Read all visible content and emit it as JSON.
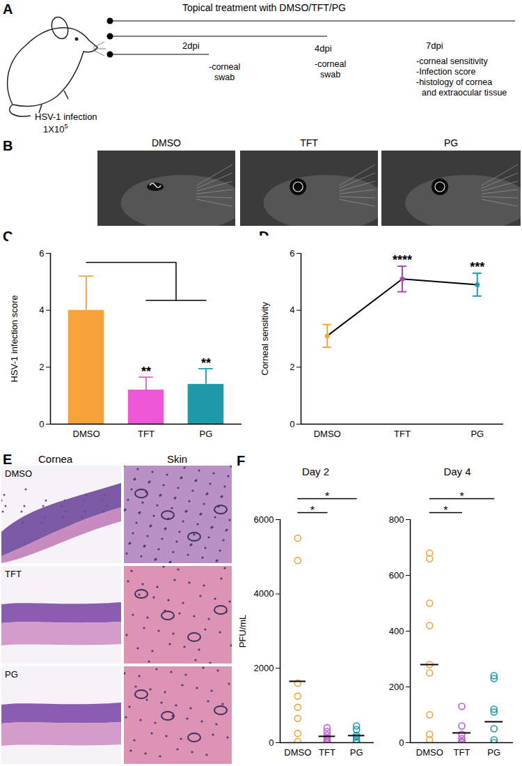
{
  "chart_data": [
    {
      "panel": "C",
      "type": "bar",
      "categories": [
        "DMSO",
        "TFT",
        "PG"
      ],
      "values": [
        4.0,
        1.2,
        1.4
      ],
      "errors": [
        1.2,
        0.45,
        0.55
      ],
      "colors": [
        "#f7a23b",
        "#ee58d8",
        "#1e9aa8"
      ],
      "ylabel": "HSV-1 infection score",
      "ylim": [
        0,
        6
      ],
      "yticks": [
        0,
        2,
        4,
        6
      ],
      "annotations": [
        {
          "category": "TFT",
          "text": "**"
        },
        {
          "category": "PG",
          "text": "**"
        }
      ],
      "comparisons": [
        {
          "from": "DMSO",
          "to": [
            "TFT",
            "PG"
          ]
        }
      ]
    },
    {
      "panel": "D",
      "type": "line",
      "categories": [
        "DMSO",
        "TFT",
        "PG"
      ],
      "values": [
        3.1,
        5.1,
        4.9
      ],
      "errors": [
        0.4,
        0.45,
        0.4
      ],
      "color": "#000000",
      "colors": [
        "#f7a23b",
        "#b23fc0",
        "#1e9aa8"
      ],
      "marker": "circle",
      "ylabel": "Corneal sensitivity",
      "ylim": [
        0,
        6
      ],
      "yticks": [
        0,
        2,
        4,
        6
      ],
      "annotations": [
        {
          "category": "TFT",
          "text": "****"
        },
        {
          "category": "PG",
          "text": "***"
        }
      ]
    },
    {
      "panel": "F",
      "type": "scatter",
      "title": "Day 2",
      "categories": [
        "DMSO",
        "TFT",
        "PG"
      ],
      "colors": [
        "#f7a23b",
        "#c05ad0",
        "#1e9aa8"
      ],
      "marker": "circle",
      "ylabel": "PFU/mL",
      "ylim": [
        0,
        6000
      ],
      "yticks": [
        0,
        2000,
        4000,
        6000
      ],
      "points": [
        [
          5500,
          4900,
          1600,
          1250,
          950,
          650,
          250,
          30
        ],
        [
          400,
          300,
          200,
          120,
          80,
          30,
          0
        ],
        [
          450,
          350,
          200,
          150,
          80,
          20,
          0
        ]
      ],
      "means": [
        1650,
        170,
        190
      ],
      "comparisons": [
        {
          "from": "DMSO",
          "to": "TFT",
          "text": "*"
        },
        {
          "from": "DMSO",
          "to": "PG",
          "text": "*"
        }
      ]
    },
    {
      "type": "scatter",
      "title": "Day 4",
      "categories": [
        "DMSO",
        "TFT",
        "PG"
      ],
      "colors": [
        "#f7a23b",
        "#c05ad0",
        "#1e9aa8"
      ],
      "marker": "circle",
      "ylim": [
        0,
        800
      ],
      "yticks": [
        0,
        200,
        400,
        600,
        800
      ],
      "points": [
        [
          680,
          660,
          500,
          420,
          280,
          250,
          100,
          30,
          10
        ],
        [
          130,
          60,
          30,
          15,
          5,
          0,
          0
        ],
        [
          240,
          230,
          120,
          110,
          50,
          10,
          0
        ]
      ],
      "means": [
        280,
        35,
        75
      ],
      "comparisons": [
        {
          "from": "DMSO",
          "to": "TFT",
          "text": "*"
        },
        {
          "from": "DMSO",
          "to": "PG",
          "text": "*"
        }
      ]
    }
  ],
  "schematic": {
    "panel": "A",
    "header": "Topical treatment with DMSO/TFT/PG",
    "infection": "HSV-1 infection",
    "dose": "1X10",
    "dose_exponent": "5",
    "timepoints": [
      {
        "label": "2dpi",
        "items": [
          "-corneal",
          "swab"
        ]
      },
      {
        "label": "4dpi",
        "items": [
          "-corneal",
          "swab"
        ]
      },
      {
        "label": "7dpi",
        "items": [
          "-corneal sensitivity",
          "-Infection score",
          "-histology of cornea",
          "and extraocular tissue"
        ]
      }
    ]
  },
  "photos": {
    "panel": "B",
    "labels": [
      "DMSO",
      "TFT",
      "PG"
    ]
  },
  "histology": {
    "panel": "E",
    "columns": [
      "Cornea",
      "Skin"
    ],
    "rows": [
      "DMSO",
      "TFT",
      "PG"
    ]
  }
}
